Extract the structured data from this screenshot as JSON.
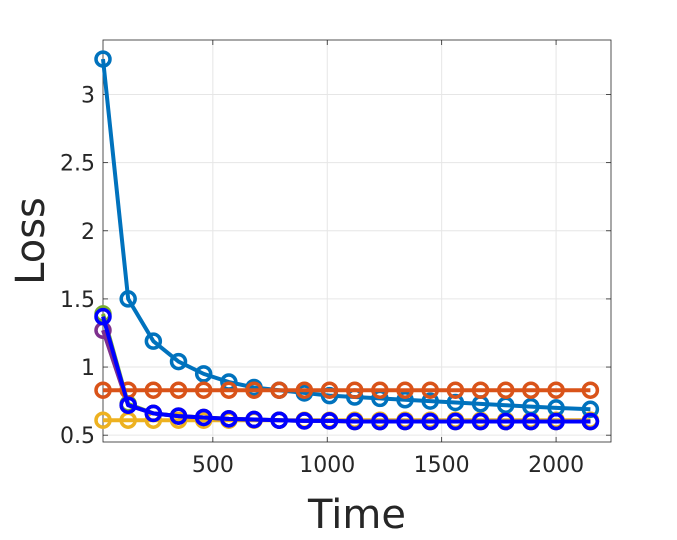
{
  "chart_data": {
    "type": "line",
    "title": "",
    "xlabel": "Time",
    "ylabel": "Loss",
    "xlim": [
      20,
      2240
    ],
    "ylim": [
      0.45,
      3.4
    ],
    "xticks": [
      500,
      1000,
      1500,
      2000
    ],
    "xtick_labels": [
      "500",
      "1000",
      "1500",
      "2000"
    ],
    "yticks": [
      0.5,
      1,
      1.5,
      2,
      2.5,
      3
    ],
    "ytick_labels": [
      "0.5",
      "1",
      "1.5",
      "2",
      "2.5",
      "3"
    ],
    "grid": true,
    "legend": "none",
    "x": [
      20,
      130,
      240,
      350,
      460,
      570,
      680,
      790,
      900,
      1010,
      1120,
      1230,
      1340,
      1450,
      1560,
      1670,
      1780,
      1890,
      2000,
      2150
    ],
    "series": [
      {
        "color": "#EDB120",
        "values": [
          0.61,
          0.61,
          0.61,
          0.61,
          0.61,
          0.61,
          0.61,
          0.61,
          0.61,
          0.61,
          0.61,
          0.61,
          0.61,
          0.61,
          0.61,
          0.61,
          0.61,
          0.61,
          0.61,
          0.61
        ]
      },
      {
        "color": "#77AC30",
        "values": [
          1.39,
          0.73,
          0.66,
          0.64,
          0.63,
          0.62,
          0.615,
          0.61,
          0.605,
          0.605,
          0.6,
          0.6,
          0.6,
          0.6,
          0.6,
          0.6,
          0.6,
          0.6,
          0.6,
          0.6
        ]
      },
      {
        "color": "#7E2F8E",
        "values": [
          1.27,
          0.72,
          0.66,
          0.64,
          0.63,
          0.62,
          0.615,
          0.61,
          0.605,
          0.605,
          0.6,
          0.6,
          0.6,
          0.6,
          0.6,
          0.6,
          0.6,
          0.6,
          0.6,
          0.6
        ]
      },
      {
        "color": "#0072BD",
        "values": [
          3.26,
          1.5,
          1.19,
          1.04,
          0.95,
          0.89,
          0.85,
          0.83,
          0.81,
          0.79,
          0.78,
          0.77,
          0.76,
          0.75,
          0.74,
          0.73,
          0.72,
          0.71,
          0.7,
          0.69
        ]
      },
      {
        "color": "#D95319",
        "values": [
          0.83,
          0.83,
          0.83,
          0.83,
          0.83,
          0.83,
          0.83,
          0.83,
          0.83,
          0.83,
          0.83,
          0.83,
          0.83,
          0.83,
          0.83,
          0.83,
          0.83,
          0.83,
          0.83,
          0.83
        ]
      },
      {
        "color": "#0000FF",
        "values": [
          1.37,
          0.72,
          0.66,
          0.64,
          0.63,
          0.62,
          0.615,
          0.61,
          0.605,
          0.605,
          0.6,
          0.6,
          0.6,
          0.6,
          0.6,
          0.6,
          0.6,
          0.6,
          0.6,
          0.6
        ]
      }
    ]
  }
}
